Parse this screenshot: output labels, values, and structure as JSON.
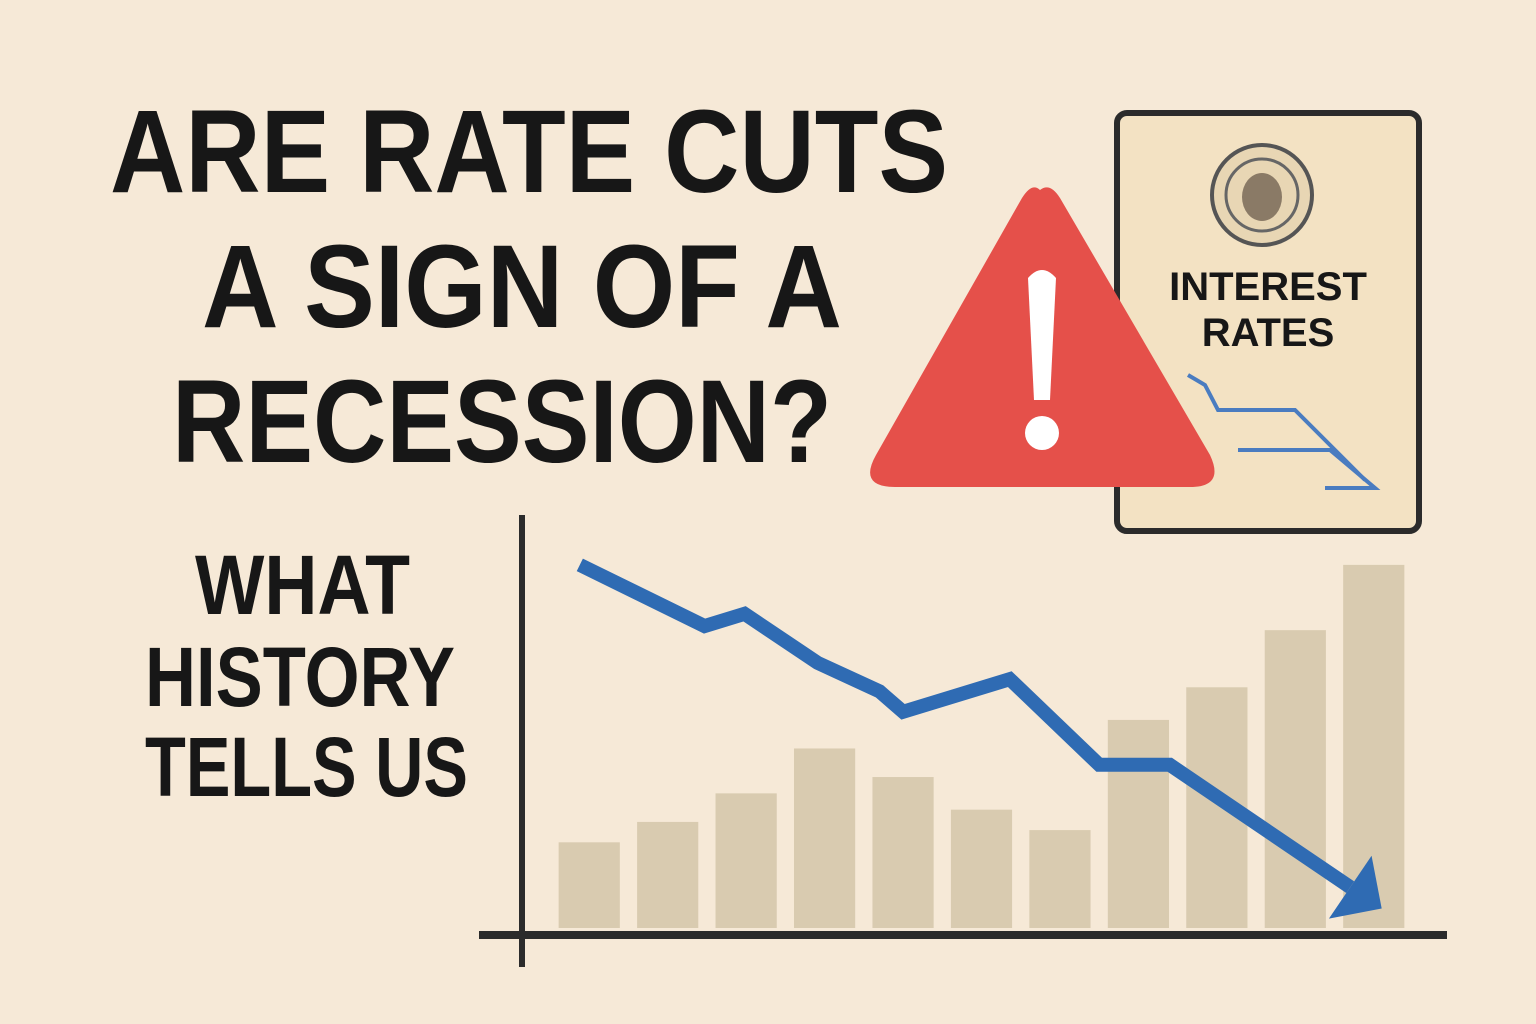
{
  "title_lines": [
    "ARE RATE CUTS",
    "A SIGN OF A",
    "RECESSION?"
  ],
  "subtitle_lines": [
    "WHAT",
    "HISTORY",
    "TELLS US"
  ],
  "card": {
    "lines": [
      "INTEREST",
      "RATES"
    ]
  },
  "chart_data": {
    "type": "bar",
    "categories": [
      null,
      null,
      null,
      null,
      null,
      null,
      null,
      null,
      null,
      null,
      null
    ],
    "values": [
      21,
      26,
      33,
      44,
      37,
      29,
      24,
      51,
      59,
      73,
      89
    ],
    "color": "#d9cbb0",
    "ylim": [
      0,
      100
    ],
    "xlim": [
      0,
      11
    ],
    "line": {
      "color": "#2f6bb3",
      "x": [
        0.38,
        1.97,
        2.48,
        3.41,
        4.2,
        4.5,
        5.86,
        7.0,
        7.9,
        10.2
      ],
      "values": [
        89,
        74,
        77,
        65,
        58,
        53,
        61,
        40,
        40,
        10
      ]
    }
  }
}
